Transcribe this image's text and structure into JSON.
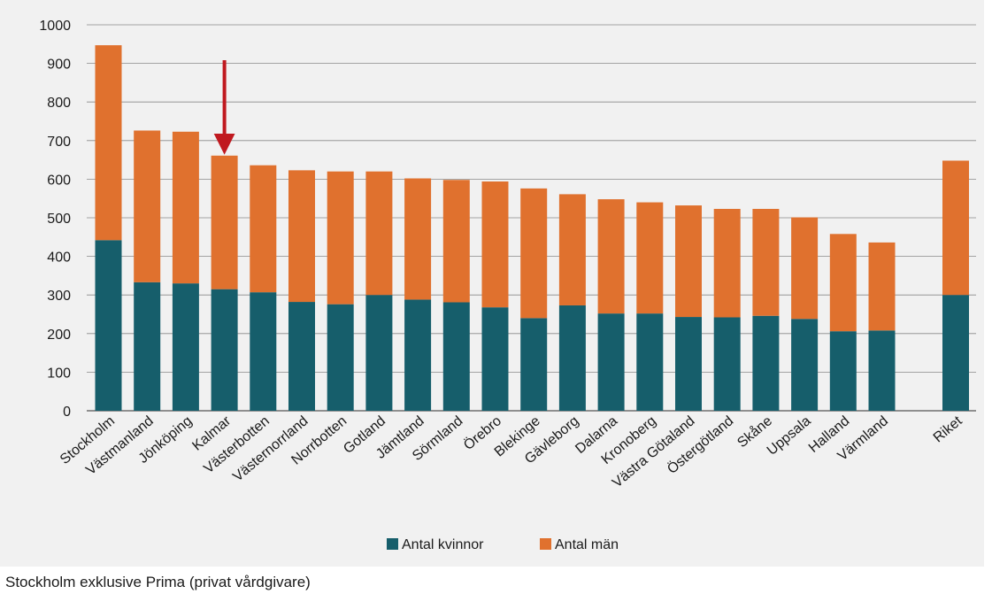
{
  "chart_data": {
    "type": "bar",
    "stacked": true,
    "categories": [
      "Stockholm",
      "Västmanland",
      "Jönköping",
      "Kalmar",
      "Västerbotten",
      "Västernorrland",
      "Norrbotten",
      "Gotland",
      "Jämtland",
      "Sörmland",
      "Örebro",
      "Blekinge",
      "Gävleborg",
      "Dalarna",
      "Kronoberg",
      "Västra Götaland",
      "Östergötland",
      "Skåne",
      "Uppsala",
      "Halland",
      "Värmland",
      "Riket"
    ],
    "series": [
      {
        "name": "Antal kvinnor",
        "color": "#165e6b",
        "values": [
          442,
          333,
          330,
          315,
          307,
          282,
          276,
          300,
          288,
          281,
          268,
          240,
          273,
          252,
          252,
          243,
          242,
          246,
          238,
          206,
          208,
          300
        ]
      },
      {
        "name": "Antal män",
        "color": "#e0712e",
        "values": [
          505,
          393,
          393,
          346,
          329,
          341,
          344,
          320,
          314,
          317,
          326,
          336,
          288,
          296,
          288,
          289,
          281,
          277,
          263,
          252,
          228,
          348
        ]
      }
    ],
    "ylim": [
      0,
      1000
    ],
    "yticks": [
      0,
      100,
      200,
      300,
      400,
      500,
      600,
      700,
      800,
      900,
      1000
    ],
    "grid": true,
    "legend_position": "bottom",
    "annotation": {
      "type": "arrow",
      "color": "#c0191f",
      "points_to": "Kalmar"
    }
  },
  "footnote": "Stockholm exklusive Prima (privat vårdgivare)"
}
